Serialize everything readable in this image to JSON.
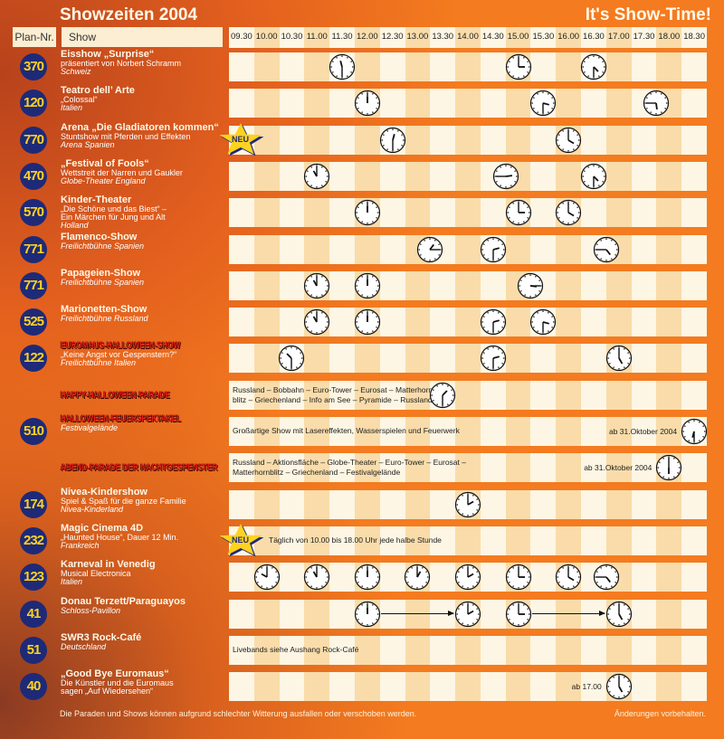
{
  "header": {
    "title": "Showzeiten 2004",
    "tagline": "It's Show-Time!",
    "plan_label": "Plan-Nr.",
    "show_label": "Show",
    "times": [
      "09.30",
      "10.00",
      "10.30",
      "11.00",
      "11.30",
      "12.00",
      "12.30",
      "13.00",
      "13.30",
      "14.00",
      "14.30",
      "15.00",
      "15.30",
      "16.00",
      "16.30",
      "17.00",
      "17.30",
      "18.00",
      "18.30"
    ]
  },
  "colors": {
    "orange": "#f47b1f",
    "badge": "#1e2a78",
    "badge_text": "#ffd21e",
    "stripe_light": "#fdf6e4",
    "stripe_dark": "#f9dcaa",
    "halloween_red": "#e8201a"
  },
  "rows": [
    {
      "plan": "370",
      "title": "Eisshow „Surprise“",
      "lines": [
        "präsentiert von Norbert Schramm"
      ],
      "place": "Schweiz",
      "times": [
        "11.30",
        "15.00",
        "16.30"
      ]
    },
    {
      "plan": "120",
      "title": "Teatro dell’ Arte",
      "lines": [
        "„Colossal“"
      ],
      "place": "Italien",
      "times": [
        "12.00",
        "15.30",
        "17.45"
      ]
    },
    {
      "plan": "770",
      "title": "Arena „Die Gladiatoren kommen“",
      "lines": [
        "Stuntshow mit Pferden und Effekten"
      ],
      "place": "Arena Spanien",
      "neu": "NEU",
      "times": [
        "12.30",
        "16.00"
      ]
    },
    {
      "plan": "470",
      "title": "„Festival of Fools“",
      "lines": [
        "Wettstreit der Narren und Gaukler"
      ],
      "place": "Globe-Theater England",
      "times": [
        "11.00",
        "14.45",
        "16.30"
      ]
    },
    {
      "plan": "570",
      "title": "Kinder-Theater",
      "lines": [
        "„Die Schöne und das Biest“ –",
        "Ein Märchen für Jung und Alt"
      ],
      "place": "Holland",
      "times": [
        "12.00",
        "15.00",
        "16.00"
      ]
    },
    {
      "plan": "771",
      "title": "Flamenco-Show",
      "lines": [],
      "place": "Freilichtbühne Spanien",
      "times": [
        "13.15",
        "14.30",
        "16.45"
      ]
    },
    {
      "plan": "771",
      "title": "Papageien-Show",
      "lines": [],
      "place": "Freilichtbühne Spanien",
      "times": [
        "11.00",
        "12.00",
        "15.15"
      ]
    },
    {
      "plan": "525",
      "title": "Marionetten-Show",
      "lines": [],
      "place": "Freilichtbühne Russland",
      "times": [
        "11.00",
        "12.00",
        "14.30",
        "15.30"
      ]
    },
    {
      "plan": "122",
      "title": "Euromaus-Halloween-Show",
      "halloween": true,
      "lines": [
        "„Keine Angst vor Gespenstern?“"
      ],
      "place": "Freilichtbühne Italien",
      "times": [
        "10.30",
        "14.30",
        "17.00"
      ]
    },
    {
      "plan": "",
      "title": "Happy-Halloween-Parade",
      "halloween": true,
      "lines": [],
      "place": "",
      "text": [
        "Russland – Bobbahn – Euro-Tower – Eurosat – Matterhorn-",
        "blitz – Griechenland – Info am See – Pyramide – Russland"
      ],
      "times": [
        "13.30"
      ]
    },
    {
      "plan": "510",
      "title": "Halloween-Feuerspektakel",
      "halloween": true,
      "lines": [],
      "place": "Festivalgelände",
      "text": [
        "Großartige Show mit Lasereffekten, Wasserspielen und Feuerwerk"
      ],
      "note": "ab 31.Oktober 2004",
      "times": [
        "18.30"
      ]
    },
    {
      "plan": "",
      "title": "Abend-Parade der Nachtgespenster",
      "halloween": true,
      "lines": [],
      "place": "",
      "text": [
        "Russland – Aktionsfläche – Globe-Theater – Euro-Tower – Eurosat –",
        "Matterhornblitz – Griechenland – Festivalgelände"
      ],
      "note": "ab 31.Oktober 2004",
      "times": [
        "18.00"
      ]
    },
    {
      "plan": "174",
      "title": "Nivea-Kindershow",
      "lines": [
        "Spiel & Spaß für die ganze Familie"
      ],
      "place": "Nivea-Kinderland",
      "times": [
        "14.00"
      ]
    },
    {
      "plan": "232",
      "title": "Magic Cinema 4D",
      "lines": [
        "„Haunted House“, Dauer 12 Min."
      ],
      "place": "Frankreich",
      "neu": "NEU",
      "text": [
        "Täglich von 10.00 bis 18.00 Uhr jede halbe Stunde"
      ],
      "times": []
    },
    {
      "plan": "123",
      "title": "Karneval in Venedig",
      "lines": [
        "Musical Electronica"
      ],
      "place": "Italien",
      "times": [
        "10.00",
        "11.00",
        "12.00",
        "13.00",
        "14.00",
        "15.00",
        "16.00",
        "16.45"
      ]
    },
    {
      "plan": "41",
      "title": "Donau Terzett/Paraguayos",
      "lines": [],
      "place": "Schloss-Pavillon",
      "times": [
        "12.00",
        "14.00",
        "15.00",
        "17.00"
      ],
      "arrows": [
        [
          "12.00",
          "14.00"
        ],
        [
          "15.00",
          "17.00"
        ]
      ]
    },
    {
      "plan": "51",
      "title": "SWR3 Rock-Café",
      "lines": [],
      "place": "Deutschland",
      "text": [
        "Livebands siehe Aushang Rock-Café"
      ],
      "times": []
    },
    {
      "plan": "40",
      "title": "„Good Bye Euromaus“",
      "lines": [
        "Die Künstler und die Euromaus",
        "sagen „Auf Wiedersehen“"
      ],
      "place": "",
      "note": "ab 17.00",
      "times": [
        "17.00"
      ]
    }
  ],
  "footer": {
    "disclaimer": "Die Paraden und Shows können aufgrund schlechter Witterung ausfallen oder verschoben werden.",
    "changes": "Änderungen vorbehalten."
  }
}
